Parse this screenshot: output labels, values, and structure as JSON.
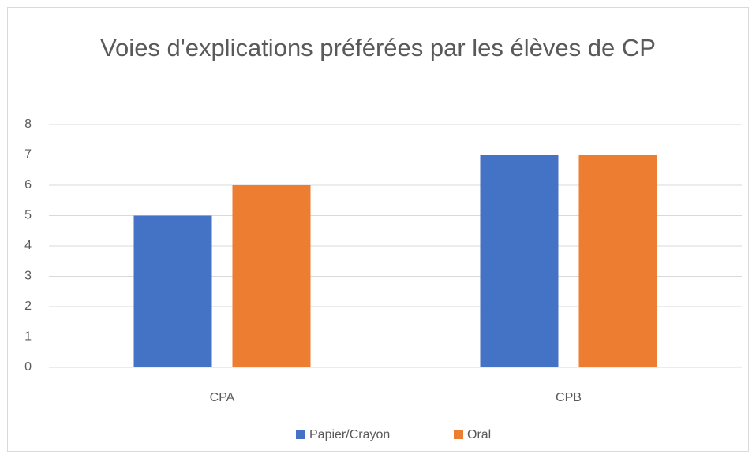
{
  "chart_data": {
    "type": "bar",
    "title": "Voies d'explications préférées par les élèves de CP",
    "categories": [
      "CPA",
      "CPB"
    ],
    "series": [
      {
        "name": "Papier/Crayon",
        "color": "#4472c4",
        "values": [
          5,
          7
        ]
      },
      {
        "name": "Oral",
        "color": "#ed7d31",
        "values": [
          6,
          7
        ]
      }
    ],
    "ylim": [
      0,
      8
    ],
    "yticks": [
      0,
      1,
      2,
      3,
      4,
      5,
      6,
      7,
      8
    ],
    "grid": true,
    "legend": "bottom"
  }
}
